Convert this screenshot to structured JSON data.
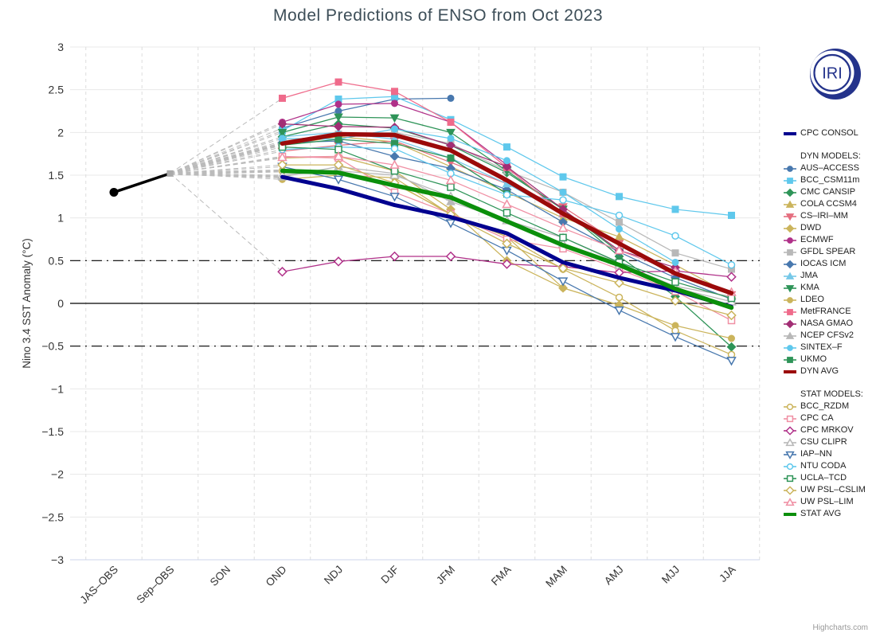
{
  "title": "Model Predictions of ENSO from Oct 2023",
  "credit": "Highcharts.com",
  "logo": {
    "text": "IRI",
    "color": "#24338b"
  },
  "axes": {
    "y_title": "Nino 3.4 SST Anomaly (°C)",
    "y_min": -3,
    "y_max": 3,
    "y_tick_step": 0.5,
    "thresholds": [
      0.5,
      -0.5
    ],
    "zero_line": 0
  },
  "legend": {
    "sections": [
      {
        "header": "",
        "items": [
          "CPC CONSOL"
        ]
      },
      {
        "header": "DYN MODELS:",
        "items": [
          "AUS–ACCESS",
          "BCC_CSM11m",
          "CMC CANSIP",
          "COLA CCSM4",
          "CS–IRI–MM",
          "DWD",
          "ECMWF",
          "GFDL SPEAR",
          "IOCAS ICM",
          "JMA",
          "KMA",
          "LDEO",
          "MetFRANCE",
          "NASA GMAO",
          "NCEP CFSv2",
          "SINTEX–F",
          "UKMO",
          "DYN AVG"
        ]
      },
      {
        "header": "STAT MODELS:",
        "items": [
          "BCC_RZDM",
          "CPC CA",
          "CPC MRKOV",
          "CSU CLIPR",
          "IAP–NN",
          "NTU CODA",
          "UCLA–TCD",
          "UW PSL–CSLIM",
          "UW PSL–LIM",
          "STAT AVG"
        ]
      }
    ]
  },
  "chart_data": {
    "type": "line",
    "title": "Model Predictions of ENSO from Oct 2023",
    "ylabel": "Nino 3.4 SST Anomaly (°C)",
    "ylim": [
      -3,
      3
    ],
    "grid": true,
    "legend_position": "right",
    "categories": [
      "JAS–OBS",
      "Sep–OBS",
      "SON",
      "OND",
      "NDJ",
      "DJF",
      "JFM",
      "FMA",
      "MAM",
      "AMJ",
      "MJJ",
      "JJA"
    ],
    "forecast_start_index": 3,
    "observed": {
      "name": "Observed",
      "color": "#000000",
      "values": [
        1.3,
        1.52
      ]
    },
    "fan_color": "#bbbbbb",
    "series": [
      {
        "name": "CPC CONSOL",
        "group": "consol",
        "color": "#00008f",
        "marker": "none",
        "open": false,
        "width": 5,
        "values": [
          1.48,
          1.34,
          1.15,
          1.01,
          0.82,
          0.48,
          0.3,
          0.15,
          -0.04
        ]
      },
      {
        "name": "AUS–ACCESS",
        "group": "dyn",
        "color": "#4878ae",
        "marker": "circle",
        "open": false,
        "width": 1.25,
        "values": [
          2.05,
          2.25,
          2.39,
          2.4,
          null,
          null,
          null,
          null,
          null
        ]
      },
      {
        "name": "BCC_CSM11m",
        "group": "dyn",
        "color": "#5fc8ec",
        "marker": "square",
        "open": false,
        "width": 1.25,
        "values": [
          2.02,
          2.39,
          2.42,
          2.15,
          1.83,
          1.48,
          1.25,
          1.1,
          1.03
        ]
      },
      {
        "name": "CMC CANSIP",
        "group": "dyn",
        "color": "#2e9458",
        "marker": "diamond",
        "open": false,
        "width": 1.25,
        "values": [
          1.95,
          2.1,
          2.05,
          1.85,
          1.53,
          1.1,
          0.55,
          0.08,
          -0.51
        ]
      },
      {
        "name": "COLA CCSM4",
        "group": "dyn",
        "color": "#cbb45c",
        "marker": "triangle",
        "open": false,
        "width": 1.25,
        "values": [
          1.85,
          1.95,
          1.89,
          1.6,
          1.3,
          1.0,
          0.78,
          0.45,
          0.1
        ]
      },
      {
        "name": "CS–IRI–MM",
        "group": "dyn",
        "color": "#e56e7f",
        "marker": "triangle-down",
        "open": false,
        "width": 1.25,
        "values": [
          1.78,
          1.85,
          1.9,
          1.65,
          1.4,
          1.13,
          0.7,
          0.34,
          0.1
        ]
      },
      {
        "name": "DWD",
        "group": "dyn",
        "color": "#cbb45c",
        "marker": "diamond",
        "open": false,
        "width": 1.25,
        "values": [
          1.7,
          1.72,
          1.55,
          1.1,
          0.5,
          0.18,
          -0.02,
          null,
          null
        ]
      },
      {
        "name": "ECMWF",
        "group": "dyn",
        "color": "#b03189",
        "marker": "circle",
        "open": false,
        "width": 1.25,
        "values": [
          2.12,
          2.33,
          2.34,
          2.12,
          1.62,
          null,
          null,
          null,
          null
        ]
      },
      {
        "name": "GFDL SPEAR",
        "group": "dyn",
        "color": "#b8b8b8",
        "marker": "square",
        "open": false,
        "width": 1.25,
        "values": [
          1.9,
          1.98,
          2.0,
          1.87,
          1.55,
          1.3,
          0.95,
          0.59,
          0.4
        ]
      },
      {
        "name": "IOCAS ICM",
        "group": "dyn",
        "color": "#4878ae",
        "marker": "diamond",
        "open": false,
        "width": 1.25,
        "values": [
          1.88,
          1.9,
          1.72,
          1.58,
          1.33,
          0.95,
          0.6,
          0.3,
          0.05
        ]
      },
      {
        "name": "JMA",
        "group": "dyn",
        "color": "#76c8e8",
        "marker": "triangle",
        "open": false,
        "width": 1.25,
        "values": [
          1.95,
          2.0,
          1.92,
          1.7,
          1.4,
          1.05,
          null,
          null,
          null
        ]
      },
      {
        "name": "KMA",
        "group": "dyn",
        "color": "#2e9458",
        "marker": "triangle-down",
        "open": false,
        "width": 1.25,
        "values": [
          2.0,
          2.18,
          2.17,
          2.0,
          1.55,
          1.1,
          0.6,
          null,
          null
        ]
      },
      {
        "name": "LDEO",
        "group": "dyn",
        "color": "#cbb45c",
        "marker": "circle",
        "open": false,
        "width": 1.25,
        "values": [
          1.45,
          1.5,
          1.47,
          1.04,
          0.78,
          0.18,
          -0.02,
          -0.26,
          -0.41
        ]
      },
      {
        "name": "MetFRANCE",
        "group": "dyn",
        "color": "#ef6b8b",
        "marker": "square",
        "open": false,
        "width": 1.25,
        "values": [
          2.4,
          2.59,
          2.48,
          2.12,
          1.59,
          1.05,
          null,
          null,
          null
        ]
      },
      {
        "name": "NASA GMAO",
        "group": "dyn",
        "color": "#a22e74",
        "marker": "diamond",
        "open": false,
        "width": 1.25,
        "values": [
          2.1,
          2.07,
          2.06,
          1.85,
          1.6,
          1.1,
          0.62,
          0.42,
          null
        ]
      },
      {
        "name": "NCEP CFSv2",
        "group": "dyn",
        "color": "#b8b8b8",
        "marker": "triangle",
        "open": false,
        "width": 1.25,
        "values": [
          1.48,
          1.6,
          1.52,
          1.19,
          0.97,
          0.77,
          0.47,
          0.2,
          0.08
        ]
      },
      {
        "name": "SINTEX–F",
        "group": "dyn",
        "color": "#5fc8ec",
        "marker": "circle",
        "open": false,
        "width": 1.25,
        "values": [
          1.93,
          1.92,
          2.04,
          1.93,
          1.67,
          1.3,
          0.87,
          0.48,
          null
        ]
      },
      {
        "name": "UKMO",
        "group": "dyn",
        "color": "#2e9458",
        "marker": "square",
        "open": false,
        "width": 1.25,
        "values": [
          1.85,
          1.92,
          1.87,
          1.7,
          1.28,
          null,
          null,
          null,
          null
        ]
      },
      {
        "name": "DYN AVG",
        "group": "avg",
        "color": "#9b0a0a",
        "marker": "none",
        "open": false,
        "width": 5.5,
        "values": [
          1.87,
          1.98,
          1.97,
          1.79,
          1.44,
          1.05,
          0.7,
          0.35,
          0.12
        ]
      },
      {
        "name": "BCC_RZDM",
        "group": "stat",
        "color": "#cbb45c",
        "marker": "circle",
        "open": true,
        "width": 1.25,
        "values": [
          1.55,
          1.52,
          1.4,
          1.05,
          0.78,
          0.4,
          0.07,
          -0.32,
          -0.6
        ]
      },
      {
        "name": "CPC CA",
        "group": "stat",
        "color": "#f090a4",
        "marker": "square",
        "open": true,
        "width": 1.25,
        "values": [
          1.72,
          1.7,
          1.3,
          1.05,
          0.75,
          0.64,
          0.4,
          0.14,
          -0.2
        ]
      },
      {
        "name": "CPC MRKOV",
        "group": "stat",
        "color": "#b03189",
        "marker": "diamond",
        "open": true,
        "width": 1.25,
        "values": [
          0.37,
          0.49,
          0.55,
          0.55,
          0.46,
          0.43,
          0.36,
          0.38,
          0.31
        ]
      },
      {
        "name": "CSU CLIPR",
        "group": "stat",
        "color": "#b8b8b8",
        "marker": "triangle",
        "open": true,
        "width": 1.25,
        "values": [
          1.5,
          1.55,
          1.5,
          1.25,
          0.97,
          0.7,
          0.45,
          0.18,
          0.02
        ]
      },
      {
        "name": "IAP–NN",
        "group": "stat",
        "color": "#4878ae",
        "marker": "triangle-down",
        "open": true,
        "width": 1.25,
        "values": [
          1.6,
          1.45,
          1.25,
          0.94,
          0.62,
          0.26,
          -0.08,
          -0.39,
          -0.67
        ]
      },
      {
        "name": "NTU CODA",
        "group": "stat",
        "color": "#5fc8ec",
        "marker": "circle",
        "open": true,
        "width": 1.25,
        "values": [
          1.8,
          1.83,
          1.81,
          1.52,
          1.27,
          1.21,
          1.03,
          0.79,
          0.45
        ]
      },
      {
        "name": "UCLA–TCD",
        "group": "stat",
        "color": "#2e9458",
        "marker": "square",
        "open": true,
        "width": 1.25,
        "values": [
          1.83,
          1.8,
          1.55,
          1.36,
          1.06,
          0.77,
          0.48,
          0.25,
          0.06
        ]
      },
      {
        "name": "UW PSL–CSLIM",
        "group": "stat",
        "color": "#cbb45c",
        "marker": "diamond",
        "open": true,
        "width": 1.25,
        "values": [
          1.62,
          1.62,
          1.41,
          1.04,
          0.7,
          0.41,
          0.24,
          0.03,
          -0.14
        ]
      },
      {
        "name": "UW PSL–LIM",
        "group": "stat",
        "color": "#f090a4",
        "marker": "triangle",
        "open": true,
        "width": 1.25,
        "values": [
          1.71,
          1.72,
          1.62,
          1.44,
          1.16,
          0.88,
          0.62,
          0.37,
          0.13
        ]
      },
      {
        "name": "STAT AVG",
        "group": "avg",
        "color": "#0b8f0b",
        "marker": "none",
        "open": false,
        "width": 5.5,
        "values": [
          1.55,
          1.53,
          1.38,
          1.24,
          0.96,
          0.68,
          0.45,
          0.17,
          -0.05
        ]
      }
    ]
  },
  "style": {
    "grid_color": "#e8e8e8",
    "vgrid_color": "#dedede",
    "axis_line_color": "#ccd6eb",
    "tick_label_color": "#333333",
    "title_color": "#3d4e58",
    "threshold_color": "#000000"
  }
}
